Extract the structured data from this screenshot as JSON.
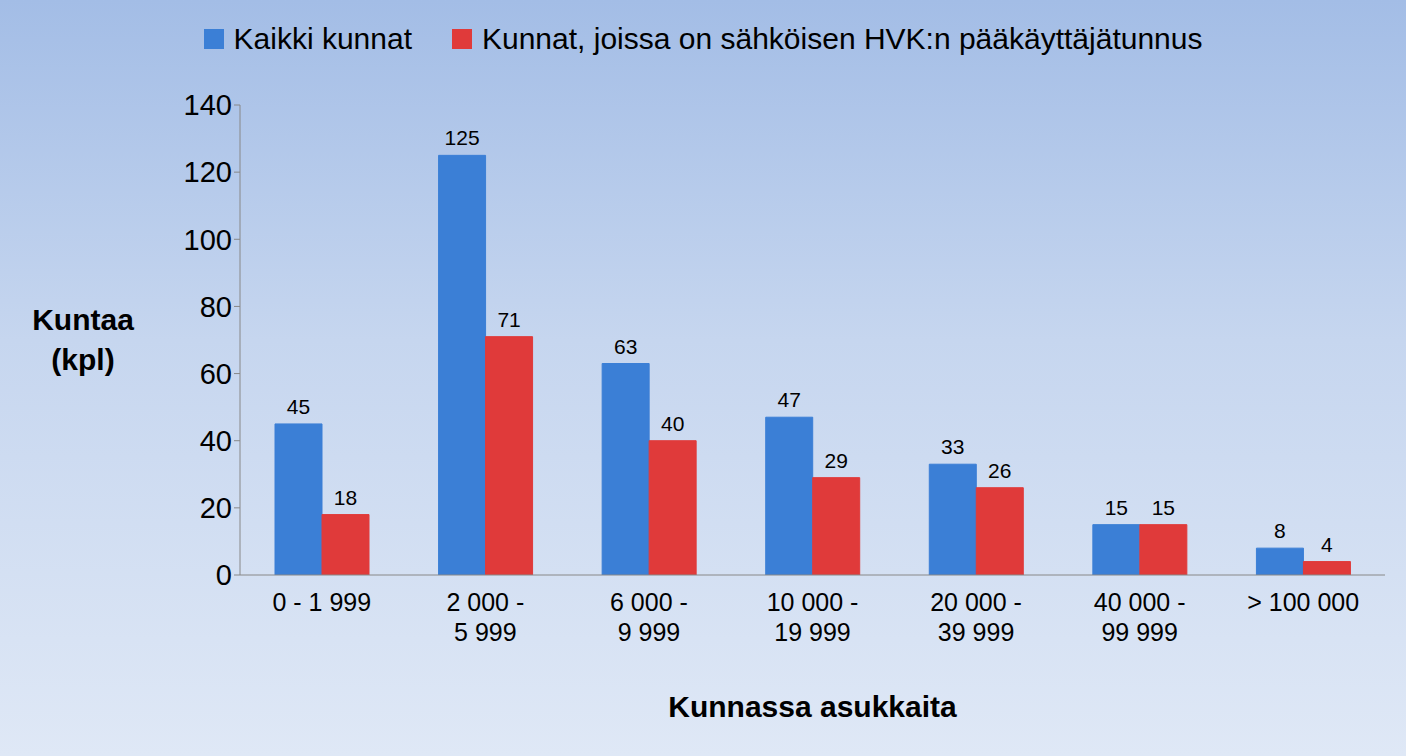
{
  "chart_data": {
    "type": "bar",
    "x_label": "Kunnassa asukkaita",
    "y_label": "Kuntaa (kpl)",
    "categories": [
      "0 - 1 999",
      "2 000 - 5 999",
      "6 000 - 9 999",
      "10 000 - 19 999",
      "20 000 - 39 999",
      "40 000 - 99 999",
      "> 100 000"
    ],
    "series": [
      {
        "name": "Kaikki kunnat",
        "color": "#3b7fd6",
        "values": [
          45,
          125,
          63,
          47,
          33,
          15,
          8
        ]
      },
      {
        "name": "Kunnat, joissa on sähköisen HVK:n pääkäyttäjätunnus",
        "color": "#e03a3a",
        "values": [
          18,
          71,
          40,
          29,
          26,
          15,
          4
        ]
      }
    ],
    "ylim": [
      0,
      140
    ],
    "yticks": [
      0,
      20,
      40,
      60,
      80,
      100,
      120,
      140
    ],
    "grid": false,
    "data_labels": true,
    "legend": "top"
  }
}
